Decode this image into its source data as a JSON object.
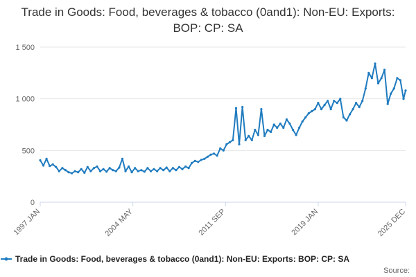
{
  "chart_data": {
    "type": "line",
    "title": "Trade in Goods: Food, beverages & tobacco (0and1): Non-EU: Exports: BOP: CP: SA",
    "xlabel": "",
    "ylabel": "",
    "x_tick_labels": [
      "1997 JAN",
      "2004 MAY",
      "2011 SEP",
      "2019 JAN",
      "2025 DEC"
    ],
    "y_tick_labels": [
      "0",
      "500",
      "1 000",
      "1 500"
    ],
    "y_ticks": [
      0,
      500,
      1000,
      1500
    ],
    "ylim": [
      0,
      1500
    ],
    "xlim": [
      "1997-01",
      "2025-12"
    ],
    "grid": "horizontal",
    "legend_position": "bottom",
    "source_text": "Source:",
    "series": [
      {
        "name": "Trade in Goods: Food, beverages & tobacco (0and1): Non-EU: Exports: BOP: CP: SA",
        "color": "#1f7bbf",
        "points": [
          [
            "1997-01",
            405
          ],
          [
            "1997-04",
            355
          ],
          [
            "1997-07",
            420
          ],
          [
            "1997-10",
            350
          ],
          [
            "1998-01",
            365
          ],
          [
            "1998-04",
            340
          ],
          [
            "1998-07",
            300
          ],
          [
            "1998-10",
            330
          ],
          [
            "1999-01",
            310
          ],
          [
            "1999-04",
            290
          ],
          [
            "1999-07",
            280
          ],
          [
            "1999-10",
            300
          ],
          [
            "2000-01",
            290
          ],
          [
            "2000-04",
            320
          ],
          [
            "2000-07",
            285
          ],
          [
            "2000-10",
            340
          ],
          [
            "2001-01",
            300
          ],
          [
            "2001-04",
            330
          ],
          [
            "2001-07",
            345
          ],
          [
            "2001-10",
            300
          ],
          [
            "2002-01",
            320
          ],
          [
            "2002-04",
            295
          ],
          [
            "2002-07",
            330
          ],
          [
            "2002-10",
            310
          ],
          [
            "2003-01",
            300
          ],
          [
            "2003-04",
            335
          ],
          [
            "2003-07",
            420
          ],
          [
            "2003-10",
            300
          ],
          [
            "2004-01",
            345
          ],
          [
            "2004-04",
            290
          ],
          [
            "2004-07",
            330
          ],
          [
            "2004-10",
            300
          ],
          [
            "2005-01",
            310
          ],
          [
            "2005-04",
            295
          ],
          [
            "2005-07",
            330
          ],
          [
            "2005-10",
            300
          ],
          [
            "2006-01",
            320
          ],
          [
            "2006-04",
            300
          ],
          [
            "2006-07",
            330
          ],
          [
            "2006-10",
            310
          ],
          [
            "2007-01",
            335
          ],
          [
            "2007-04",
            300
          ],
          [
            "2007-07",
            330
          ],
          [
            "2007-10",
            310
          ],
          [
            "2008-01",
            340
          ],
          [
            "2008-04",
            320
          ],
          [
            "2008-07",
            345
          ],
          [
            "2008-10",
            330
          ],
          [
            "2009-01",
            380
          ],
          [
            "2009-04",
            400
          ],
          [
            "2009-07",
            390
          ],
          [
            "2009-10",
            410
          ],
          [
            "2010-01",
            420
          ],
          [
            "2010-04",
            440
          ],
          [
            "2010-07",
            460
          ],
          [
            "2010-10",
            470
          ],
          [
            "2011-01",
            450
          ],
          [
            "2011-04",
            520
          ],
          [
            "2011-07",
            500
          ],
          [
            "2011-10",
            560
          ],
          [
            "2012-01",
            580
          ],
          [
            "2012-04",
            600
          ],
          [
            "2012-07",
            910
          ],
          [
            "2012-10",
            560
          ],
          [
            "2013-01",
            920
          ],
          [
            "2013-04",
            600
          ],
          [
            "2013-07",
            640
          ],
          [
            "2013-10",
            600
          ],
          [
            "2014-01",
            700
          ],
          [
            "2014-04",
            650
          ],
          [
            "2014-07",
            900
          ],
          [
            "2014-10",
            640
          ],
          [
            "2015-01",
            700
          ],
          [
            "2015-04",
            680
          ],
          [
            "2015-07",
            750
          ],
          [
            "2015-10",
            720
          ],
          [
            "2016-01",
            760
          ],
          [
            "2016-04",
            720
          ],
          [
            "2016-07",
            800
          ],
          [
            "2016-10",
            760
          ],
          [
            "2017-01",
            700
          ],
          [
            "2017-04",
            650
          ],
          [
            "2017-07",
            720
          ],
          [
            "2017-10",
            780
          ],
          [
            "2018-01",
            820
          ],
          [
            "2018-04",
            860
          ],
          [
            "2018-07",
            880
          ],
          [
            "2018-10",
            900
          ],
          [
            "2019-01",
            960
          ],
          [
            "2019-04",
            900
          ],
          [
            "2019-07",
            940
          ],
          [
            "2019-10",
            980
          ],
          [
            "2020-01",
            900
          ],
          [
            "2020-04",
            980
          ],
          [
            "2020-07",
            960
          ],
          [
            "2020-10",
            1000
          ],
          [
            "2021-01",
            820
          ],
          [
            "2021-04",
            790
          ],
          [
            "2021-07",
            850
          ],
          [
            "2021-10",
            900
          ],
          [
            "2022-01",
            960
          ],
          [
            "2022-04",
            920
          ],
          [
            "2022-07",
            980
          ],
          [
            "2022-10",
            1100
          ],
          [
            "2023-01",
            1250
          ],
          [
            "2023-04",
            1200
          ],
          [
            "2023-07",
            1340
          ],
          [
            "2023-10",
            1150
          ],
          [
            "2024-01",
            1200
          ],
          [
            "2024-04",
            1280
          ],
          [
            "2024-07",
            950
          ],
          [
            "2024-10",
            1050
          ],
          [
            "2025-01",
            1100
          ],
          [
            "2025-04",
            1200
          ],
          [
            "2025-07",
            1180
          ],
          [
            "2025-10",
            1000
          ],
          [
            "2025-12",
            1080
          ]
        ]
      }
    ]
  }
}
